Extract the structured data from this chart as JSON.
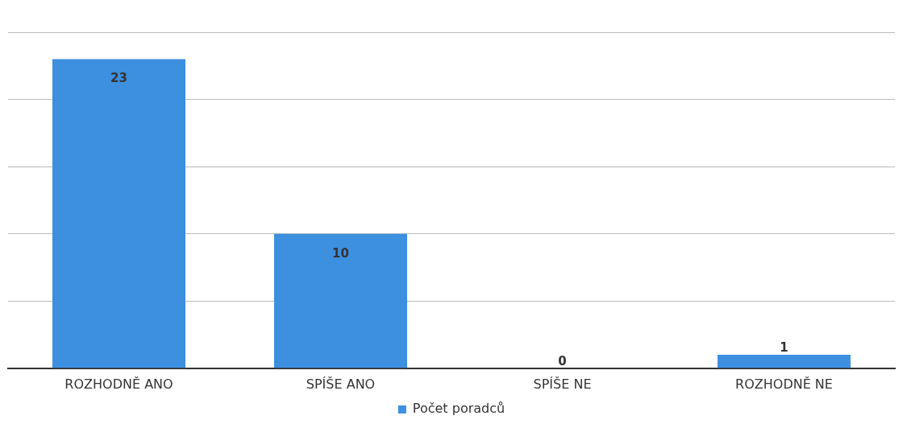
{
  "chart_data": {
    "type": "bar",
    "categories": [
      "ROZHODNĚ ANO",
      "SPÍŠE ANO",
      "SPÍŠE NE",
      "ROZHODNĚ NE"
    ],
    "series": [
      {
        "name": "Počet poradců",
        "color": "#3d8fe0",
        "values": [
          23,
          10,
          0,
          1
        ]
      }
    ],
    "ylim": [
      0,
      25
    ],
    "yticks": [
      {
        "value": 0,
        "label": null
      },
      {
        "value": 5,
        "label": null
      },
      {
        "value": 10,
        "label": null
      },
      {
        "value": 15,
        "label": null
      },
      {
        "value": 20,
        "label": null
      },
      {
        "value": 25,
        "label": null
      }
    ],
    "tick_labels": "x",
    "grid": "y",
    "legend": "bottom",
    "data_labels": true
  }
}
